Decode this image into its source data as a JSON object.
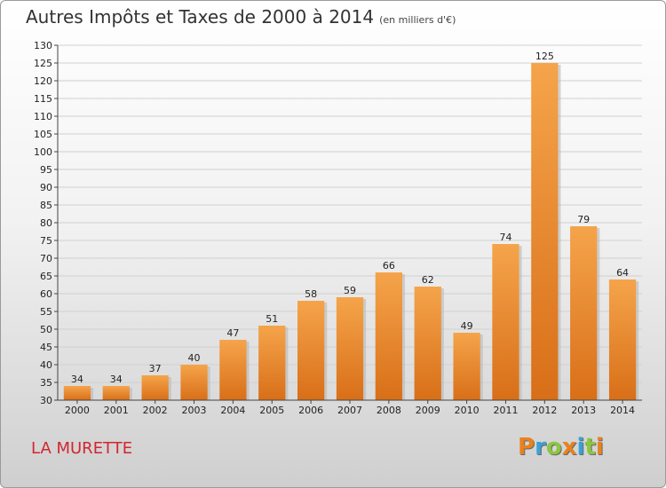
{
  "title": "Autres Impôts et Taxes de 2000 à 2014",
  "unit": "(en milliers d'€)",
  "commune": "LA MURETTE",
  "logo": {
    "letters": [
      "P",
      "r",
      "o",
      "x",
      "i",
      "t",
      "i"
    ],
    "colors": [
      "#e8821e",
      "#3aa0d8",
      "#8cc63f",
      "#e8821e",
      "#3aa0d8",
      "#8cc63f",
      "#e8821e"
    ]
  },
  "colors": {
    "bar_top": "#f5a44b",
    "bar_bottom": "#d86f18",
    "grid": "#d0d0d0",
    "axis": "#444444"
  },
  "chart_data": {
    "type": "bar",
    "categories": [
      "2000",
      "2001",
      "2002",
      "2003",
      "2004",
      "2005",
      "2006",
      "2007",
      "2008",
      "2009",
      "2010",
      "2011",
      "2012",
      "2013",
      "2014"
    ],
    "values": [
      34,
      34,
      37,
      40,
      47,
      51,
      58,
      59,
      66,
      62,
      49,
      74,
      125,
      79,
      64
    ],
    "ylim": [
      30,
      130
    ],
    "ytick_step": 5,
    "grid": true
  }
}
